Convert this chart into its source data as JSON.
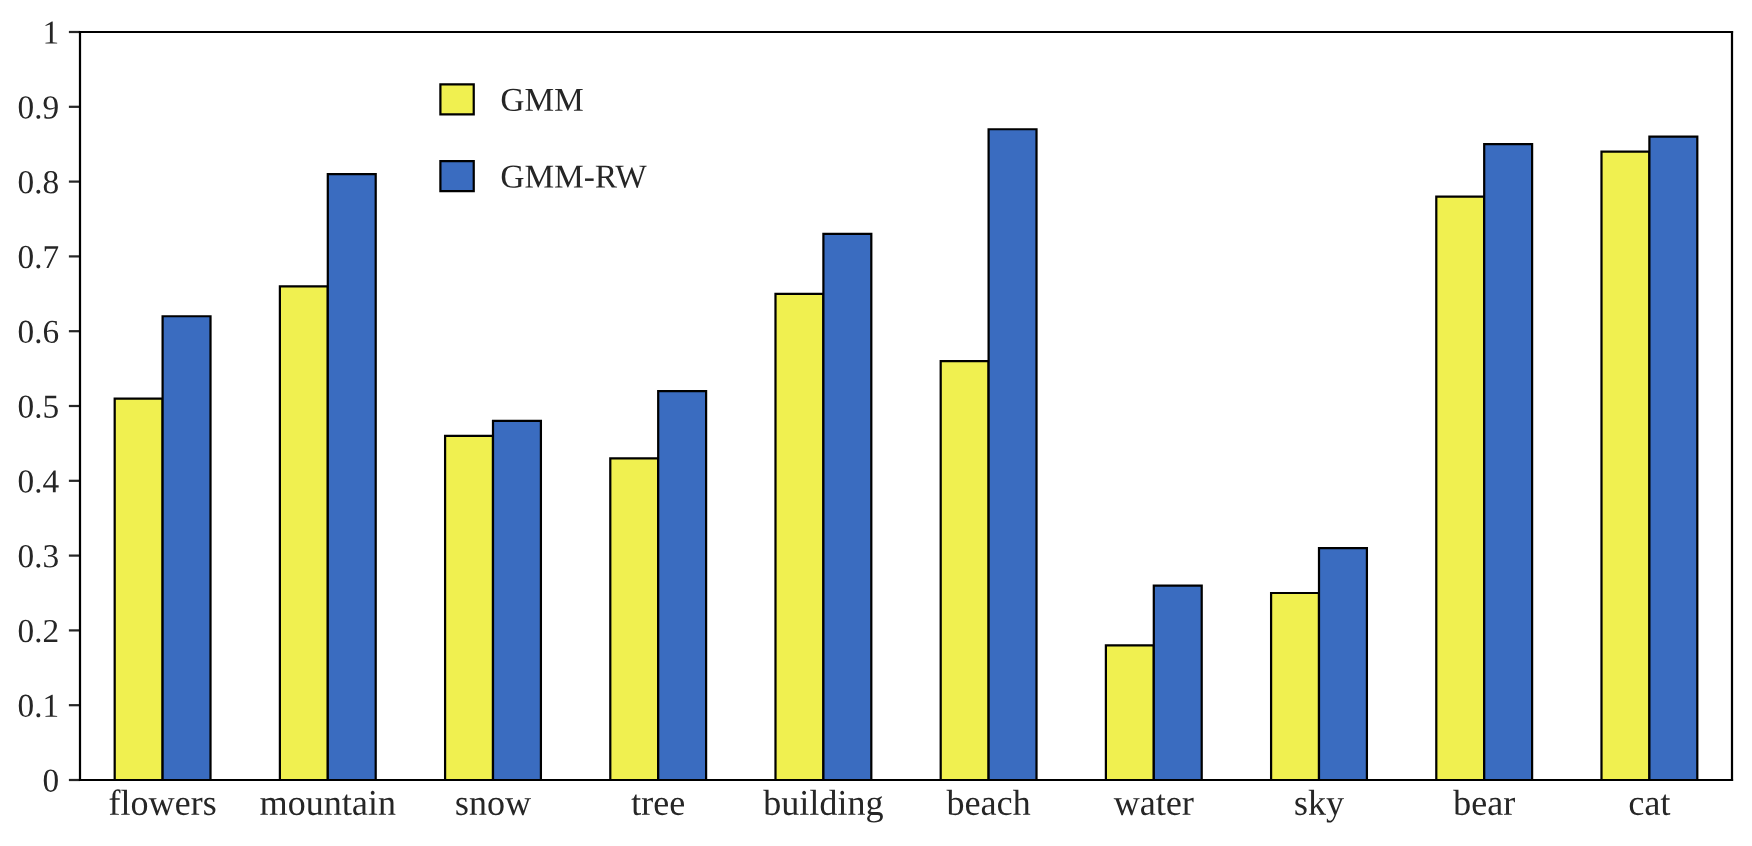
{
  "chart_data": {
    "type": "bar",
    "categories": [
      "flowers",
      "mountain",
      "snow",
      "tree",
      "building",
      "beach",
      "water",
      "sky",
      "bear",
      "cat"
    ],
    "series": [
      {
        "name": "GMM",
        "color": "#f0f050",
        "values": [
          0.51,
          0.66,
          0.46,
          0.43,
          0.65,
          0.56,
          0.18,
          0.25,
          0.78,
          0.84
        ]
      },
      {
        "name": "GMM-RW",
        "color": "#3a6cc0",
        "values": [
          0.62,
          0.81,
          0.48,
          0.52,
          0.73,
          0.87,
          0.26,
          0.31,
          0.85,
          0.86
        ]
      }
    ],
    "ylim": [
      0,
      1
    ],
    "yticks": [
      0,
      0.1,
      0.2,
      0.3,
      0.4,
      0.5,
      0.6,
      0.7,
      0.8,
      0.9,
      1
    ],
    "grid": false,
    "legend": "top left"
  }
}
